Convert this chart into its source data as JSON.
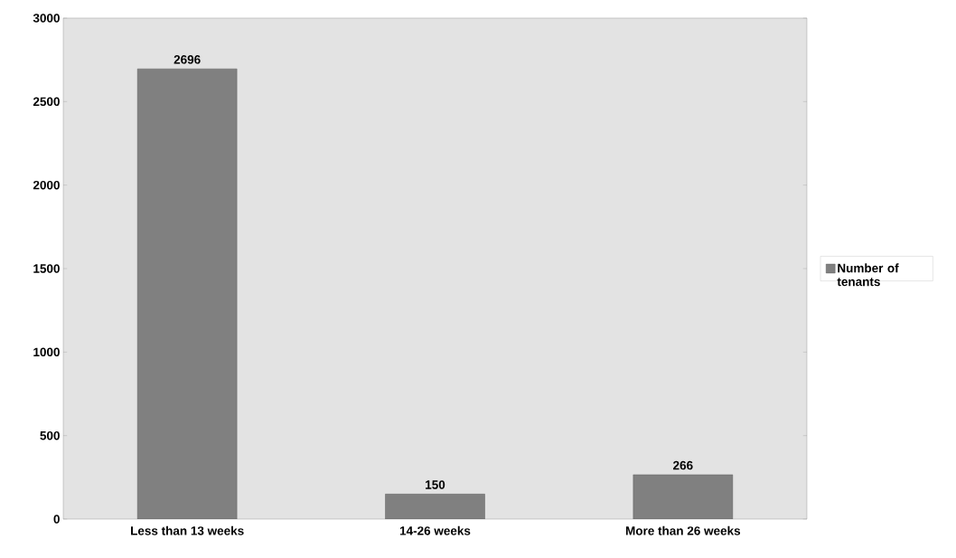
{
  "chart_data": {
    "type": "bar",
    "categories": [
      "Less than 13 weeks",
      "14-26 weeks",
      "More than 26 weeks"
    ],
    "series": [
      {
        "name": "Number of tenants",
        "color": "#808080",
        "values": [
          2696,
          150,
          266
        ]
      }
    ],
    "ylim": [
      0,
      3000
    ],
    "yticks": [
      0,
      500,
      1000,
      1500,
      2000,
      2500,
      3000
    ],
    "data_labels": true,
    "legend": "right",
    "grid": false
  }
}
